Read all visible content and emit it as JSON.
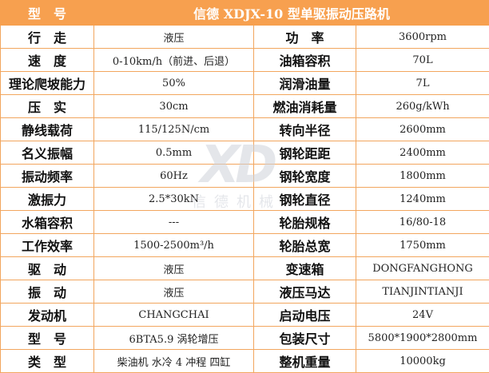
{
  "header": {
    "label": "型　号",
    "title": "信德 XDJX-10 型单驱振动压路机"
  },
  "rows": [
    {
      "k1": "行　走",
      "v1": "液压",
      "k2": "功　率",
      "v2": "3600rpm"
    },
    {
      "k1": "速　度",
      "v1": "0-10km/h（前进、后退）",
      "k2": "油箱容积",
      "v2": "70L"
    },
    {
      "k1": "理论爬坡能力",
      "v1": "50%",
      "k2": "润滑油量",
      "v2": "7L"
    },
    {
      "k1": "压　实",
      "v1": "30cm",
      "k2": "燃油消耗量",
      "v2": "260g/kWh"
    },
    {
      "k1": "静线载荷",
      "v1": "115/125N/cm",
      "k2": "转向半径",
      "v2": "2600mm"
    },
    {
      "k1": "名义振幅",
      "v1": "0.5mm",
      "k2": "钢轮距距",
      "v2": "2400mm"
    },
    {
      "k1": "振动频率",
      "v1": "60Hz",
      "k2": "钢轮宽度",
      "v2": "1800mm"
    },
    {
      "k1": "激振力",
      "v1": "2.5*30kN",
      "k2": "钢轮直径",
      "v2": "1240mm"
    },
    {
      "k1": "水箱容积",
      "v1": "---",
      "k2": "轮胎规格",
      "v2": "16/80-18"
    },
    {
      "k1": "工作效率",
      "v1": "1500-2500m³/h",
      "k2": "轮胎总宽",
      "v2": "1750mm"
    },
    {
      "k1": "驱　动",
      "v1": "液压",
      "k2": "变速箱",
      "v2": "DONGFANGHONG"
    },
    {
      "k1": "振　动",
      "v1": "液压",
      "k2": "液压马达",
      "v2": "TIANJINTIANJI"
    },
    {
      "k1": "发动机",
      "v1": "CHANGCHAI",
      "k2": "启动电压",
      "v2": "24V"
    },
    {
      "k1": "型　号",
      "v1": "6BTA5.9 涡轮增压",
      "k2": "包装尺寸",
      "v2": "5800*1900*2800mm"
    },
    {
      "k1": "类　型",
      "v1": "柴油机 水冷 4 冲程 四缸",
      "k2": "整机重量",
      "v2": "10000kg"
    }
  ],
  "watermark": {
    "logo": "XD",
    "text": "信德机械"
  },
  "colors": {
    "header_bg": "#f7a04f",
    "border": "#f2a65e"
  }
}
